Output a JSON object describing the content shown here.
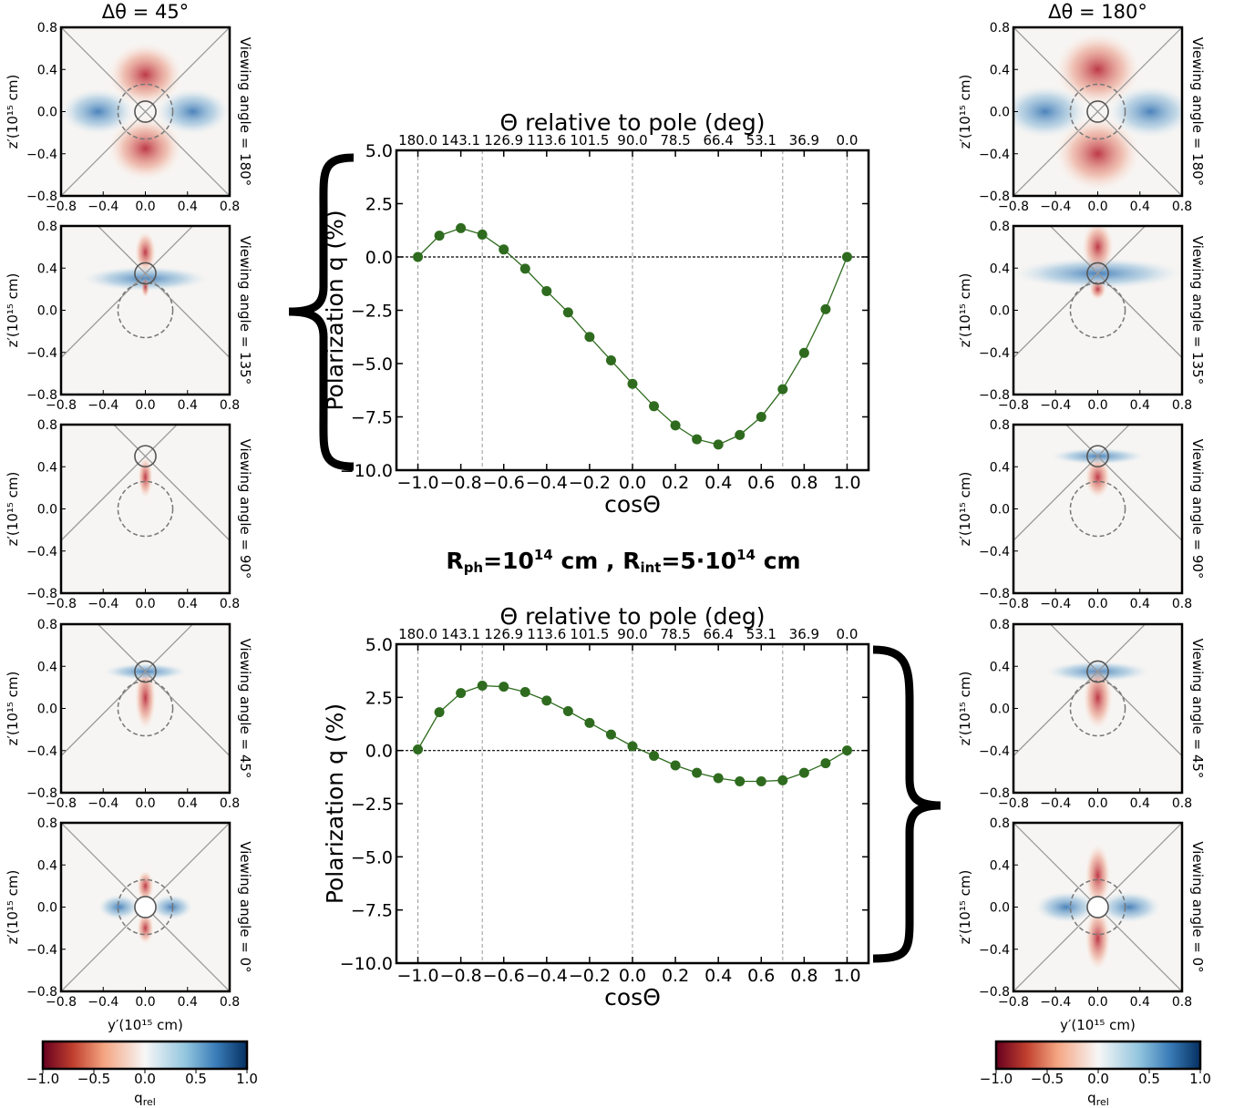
{
  "chart_data": [
    {
      "type": "line",
      "x2label": "Θ relative to pole (deg)",
      "xlabel": "cosΘ",
      "ylabel": "Polarization q (%)",
      "color": "#2e6b1e",
      "x": [
        -1.0,
        -0.9,
        -0.8,
        -0.7,
        -0.6,
        -0.5,
        -0.4,
        -0.3,
        -0.2,
        -0.1,
        0.0,
        0.1,
        0.2,
        0.3,
        0.4,
        0.5,
        0.6,
        0.7,
        0.8,
        0.9,
        1.0
      ],
      "values": [
        0,
        1.0,
        1.35,
        1.05,
        0.35,
        -0.55,
        -1.6,
        -2.6,
        -3.75,
        -4.85,
        -5.95,
        -7.0,
        -7.9,
        -8.55,
        -8.8,
        -8.35,
        -7.5,
        -6.2,
        -4.5,
        -2.45,
        0
      ],
      "xlim": [
        -1.1,
        1.1
      ],
      "ylim": [
        -10,
        5
      ],
      "xticks": [
        {
          "value": -1.0,
          "label": "−1.0"
        },
        {
          "value": -0.8,
          "label": "−0.8"
        },
        {
          "value": -0.6,
          "label": "−0.6"
        },
        {
          "value": -0.4,
          "label": "−0.4"
        },
        {
          "value": -0.2,
          "label": "−0.2"
        },
        {
          "value": 0.0,
          "label": "0.0"
        },
        {
          "value": 0.2,
          "label": "0.2"
        },
        {
          "value": 0.4,
          "label": "0.4"
        },
        {
          "value": 0.6,
          "label": "0.6"
        },
        {
          "value": 0.8,
          "label": "0.8"
        },
        {
          "value": 1.0,
          "label": "1.0"
        }
      ],
      "x2ticks": [
        {
          "value": -1.0,
          "label": "180.0"
        },
        {
          "value": -0.8,
          "label": "143.1"
        },
        {
          "value": -0.6,
          "label": "126.9"
        },
        {
          "value": -0.4,
          "label": "113.6"
        },
        {
          "value": -0.2,
          "label": "101.5"
        },
        {
          "value": 0.0,
          "label": "90.0"
        },
        {
          "value": 0.2,
          "label": "78.5"
        },
        {
          "value": 0.4,
          "label": "66.4"
        },
        {
          "value": 0.6,
          "label": "53.1"
        },
        {
          "value": 0.8,
          "label": "36.9"
        },
        {
          "value": 1.0,
          "label": "0.0"
        }
      ],
      "yticks": [
        {
          "value": 5,
          "label": "5.0"
        },
        {
          "value": 2.5,
          "label": "2.5"
        },
        {
          "value": 0,
          "label": "0.0"
        },
        {
          "value": -2.5,
          "label": "−2.5"
        },
        {
          "value": -5,
          "label": "−5.0"
        },
        {
          "value": -7.5,
          "label": "−7.5"
        },
        {
          "value": -10,
          "label": "−10.0"
        }
      ],
      "vlines": [
        -1.0,
        -0.7,
        0.0,
        0.7,
        1.0
      ],
      "hline": 0
    },
    {
      "type": "line",
      "x2label": "Θ relative to pole (deg)",
      "xlabel": "cosΘ",
      "ylabel": "Polarization q (%)",
      "color": "#2e6b1e",
      "x": [
        -1.0,
        -0.9,
        -0.8,
        -0.7,
        -0.6,
        -0.5,
        -0.4,
        -0.3,
        -0.2,
        -0.1,
        0.0,
        0.1,
        0.2,
        0.3,
        0.4,
        0.5,
        0.6,
        0.7,
        0.8,
        0.9,
        1.0
      ],
      "values": [
        0.05,
        1.8,
        2.7,
        3.05,
        3.0,
        2.75,
        2.35,
        1.85,
        1.3,
        0.75,
        0.2,
        -0.25,
        -0.7,
        -1.05,
        -1.3,
        -1.45,
        -1.45,
        -1.4,
        -1.05,
        -0.6,
        0.0
      ],
      "xlim": [
        -1.1,
        1.1
      ],
      "ylim": [
        -10,
        5
      ],
      "xticks": [
        {
          "value": -1.0,
          "label": "−1.0"
        },
        {
          "value": -0.8,
          "label": "−0.8"
        },
        {
          "value": -0.6,
          "label": "−0.6"
        },
        {
          "value": -0.4,
          "label": "−0.4"
        },
        {
          "value": -0.2,
          "label": "−0.2"
        },
        {
          "value": 0.0,
          "label": "0.0"
        },
        {
          "value": 0.2,
          "label": "0.2"
        },
        {
          "value": 0.4,
          "label": "0.4"
        },
        {
          "value": 0.6,
          "label": "0.6"
        },
        {
          "value": 0.8,
          "label": "0.8"
        },
        {
          "value": 1.0,
          "label": "1.0"
        }
      ],
      "x2ticks": [
        {
          "value": -1.0,
          "label": "180.0"
        },
        {
          "value": -0.8,
          "label": "143.1"
        },
        {
          "value": -0.6,
          "label": "126.9"
        },
        {
          "value": -0.4,
          "label": "113.6"
        },
        {
          "value": -0.2,
          "label": "101.5"
        },
        {
          "value": 0.0,
          "label": "90.0"
        },
        {
          "value": 0.2,
          "label": "78.5"
        },
        {
          "value": 0.4,
          "label": "66.4"
        },
        {
          "value": 0.6,
          "label": "53.1"
        },
        {
          "value": 0.8,
          "label": "36.9"
        },
        {
          "value": 1.0,
          "label": "0.0"
        }
      ],
      "yticks": [
        {
          "value": 5,
          "label": "5.0"
        },
        {
          "value": 2.5,
          "label": "2.5"
        },
        {
          "value": 0,
          "label": "0.0"
        },
        {
          "value": -2.5,
          "label": "−2.5"
        },
        {
          "value": -5,
          "label": "−5.0"
        },
        {
          "value": -7.5,
          "label": "−7.5"
        },
        {
          "value": -10,
          "label": "−10.0"
        }
      ],
      "vlines": [
        -1.0,
        -0.7,
        0.0,
        0.7,
        1.0
      ],
      "hline": 0
    }
  ],
  "annotation": [
    {
      "text": "R"
    },
    {
      "text": "ph",
      "sub": true
    },
    {
      "text": "=10"
    },
    {
      "text": "14",
      "sup": true
    },
    {
      "text": " cm , R"
    },
    {
      "text": "int",
      "sub": true
    },
    {
      "text": "=5·10"
    },
    {
      "text": "14",
      "sup": true
    },
    {
      "text": " cm"
    }
  ],
  "columns": [
    {
      "title": "Δθ = 45°",
      "ylabel": "z′(10¹⁵ cm)",
      "xlabel": "y′(10¹⁵ cm)",
      "panels": [
        "Viewing angle = 180°",
        "Viewing angle = 135°",
        "Viewing angle = 90°",
        "Viewing angle = 45°",
        "Viewing angle = 0°"
      ]
    },
    {
      "title": "Δθ = 180°",
      "ylabel": "z′(10¹⁵ cm)",
      "xlabel": "y′(10¹⁵ cm)",
      "panels": [
        "Viewing angle = 180°",
        "Viewing angle = 135°",
        "Viewing angle = 90°",
        "Viewing angle = 45°",
        "Viewing angle = 0°"
      ]
    }
  ],
  "panel_lim": [
    -0.8,
    0.8
  ],
  "panel_ticks": [
    {
      "value": -0.8,
      "label": "−0.8"
    },
    {
      "value": -0.4,
      "label": "−0.4"
    },
    {
      "value": 0.0,
      "label": "0.0"
    },
    {
      "value": 0.4,
      "label": "0.4"
    },
    {
      "value": 0.8,
      "label": "0.8"
    }
  ],
  "colorbar": {
    "lim": [
      -1,
      1
    ],
    "label": "q",
    "label_sub": "rel",
    "ticks": [
      {
        "value": -1.0,
        "label": "−1.0"
      },
      {
        "value": -0.5,
        "label": "−0.5"
      },
      {
        "value": 0.0,
        "label": "0.0"
      },
      {
        "value": 0.5,
        "label": "0.5"
      },
      {
        "value": 1.0,
        "label": "1.0"
      }
    ]
  }
}
